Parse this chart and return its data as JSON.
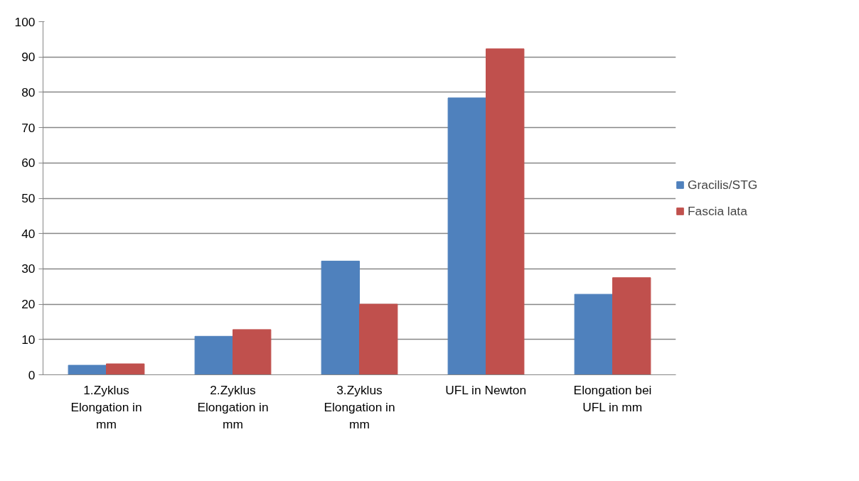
{
  "chart_data": {
    "type": "bar",
    "categories": [
      "1.Zyklus Elongation in mm",
      "2.Zyklus Elongation in mm",
      "3.Zyklus Elongation in mm",
      "UFL in Newton",
      "Elongation bei UFL in mm"
    ],
    "series": [
      {
        "name": "Gracilis/STG",
        "color": "#4f81bd",
        "values": [
          2.7,
          10.9,
          32.2,
          78.4,
          22.8
        ]
      },
      {
        "name": "Fascia lata",
        "color": "#c0504d",
        "values": [
          3.1,
          12.8,
          20.0,
          92.3,
          27.5
        ]
      }
    ],
    "ylim": [
      0,
      100
    ],
    "yticks": [
      0,
      10,
      20,
      30,
      40,
      50,
      60,
      70,
      80,
      90,
      100
    ],
    "grid": "y",
    "legend": "right"
  }
}
